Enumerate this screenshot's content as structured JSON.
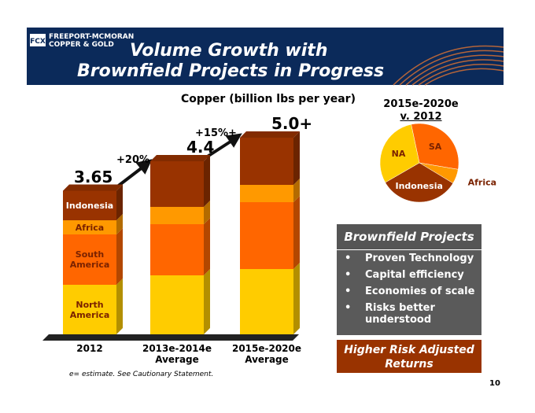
{
  "logo": {
    "line1": "FREEPORT-MCMORAN",
    "line2": "COPPER & GOLD",
    "mark": "FCX"
  },
  "title": [
    "Volume Growth with",
    "Brownfield Projects in Progress"
  ],
  "chart_data": [
    {
      "type": "bar",
      "stacked": true,
      "title": "Copper (billion lbs per year)",
      "categories": [
        "2012",
        "2013e-2014e Average",
        "2015e-2020e Average"
      ],
      "series": [
        {
          "name": "North America",
          "color": "#ffcc00",
          "values": [
            1.26,
            1.5,
            1.66
          ]
        },
        {
          "name": "South America",
          "color": "#ff6600",
          "values": [
            1.28,
            1.3,
            1.7
          ]
        },
        {
          "name": "Africa",
          "color": "#ff9900",
          "values": [
            0.36,
            0.44,
            0.44
          ]
        },
        {
          "name": "Indonesia",
          "color": "#993300",
          "values": [
            0.75,
            1.16,
            1.2
          ]
        }
      ],
      "totals": [
        3.65,
        4.4,
        5.0
      ],
      "total_labels": [
        "3.65",
        "4.4",
        "5.0+"
      ],
      "annotations": [
        "+20%",
        "+15%+"
      ],
      "ylim": [
        0,
        5.0
      ]
    },
    {
      "type": "pie",
      "title": [
        "2015e-2020e",
        "v. 2012"
      ],
      "categories": [
        "SA",
        "Africa",
        "Indonesia",
        "NA"
      ],
      "values": [
        31,
        6,
        33,
        30
      ],
      "colors": [
        "#ff6600",
        "#ff9900",
        "#993300",
        "#ffcc00"
      ]
    }
  ],
  "brownfield": {
    "title": "Brownfield Projects",
    "bullets": [
      "Proven Technology",
      "Capital efficiency",
      "Economies of scale",
      "Risks better understood"
    ],
    "footer": "Higher Risk Adjusted Returns"
  },
  "footnote": "e= estimate. See Cautionary Statement.",
  "page_number": "10"
}
